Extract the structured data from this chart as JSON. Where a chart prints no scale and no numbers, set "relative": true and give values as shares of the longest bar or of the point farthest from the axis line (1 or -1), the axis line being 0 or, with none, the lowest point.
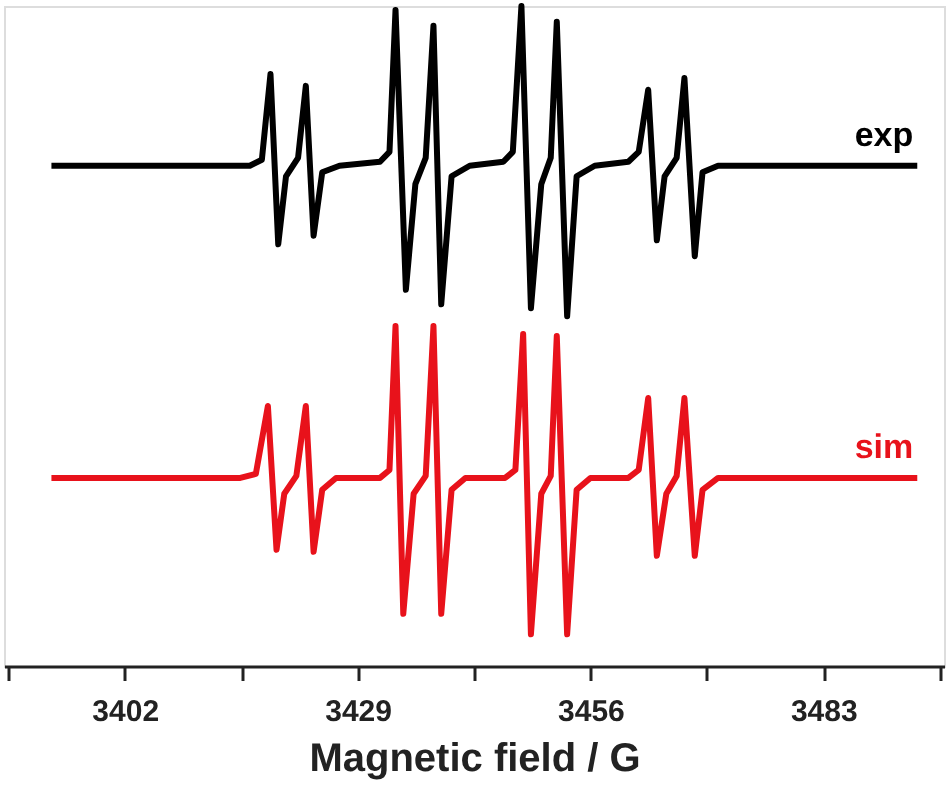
{
  "chart_data": {
    "type": "line",
    "relative": true,
    "xlabel": "Magnetic field / G",
    "xlim": [
      3388,
      3497
    ],
    "xticks": [
      {
        "value": 3388.5,
        "label": null
      },
      3402,
      {
        "value": 3415.5,
        "label": null
      },
      3429,
      {
        "value": 3442.5,
        "label": null
      },
      3456,
      {
        "value": 3469.5,
        "label": null
      },
      3483,
      {
        "value": 3496.5,
        "label": null
      }
    ],
    "grid": false,
    "line_style": "solid",
    "marker": "none",
    "series": [
      {
        "name": "exp",
        "color": "#000000",
        "x": [
          3393.5,
          3416.5,
          3417.9,
          3418.9,
          3419.8,
          3420.7,
          3422.1,
          3423.0,
          3423.9,
          3424.9,
          3426.9,
          3431.6,
          3432.7,
          3433.4,
          3434.6,
          3435.7,
          3436.9,
          3437.8,
          3438.7,
          3439.9,
          3442.0,
          3445.9,
          3447.0,
          3448.0,
          3449.1,
          3450.3,
          3451.4,
          3452.1,
          3453.3,
          3454.4,
          3456.5,
          3460.4,
          3461.6,
          3462.7,
          3463.7,
          3464.6,
          3466.0,
          3466.9,
          3468.1,
          3469.0,
          3470.8,
          3493.9
        ],
        "values": [
          0.758,
          0.758,
          0.767,
          0.897,
          0.639,
          0.742,
          0.77,
          0.879,
          0.652,
          0.748,
          0.758,
          0.764,
          0.779,
          0.994,
          0.57,
          0.73,
          0.77,
          0.97,
          0.548,
          0.742,
          0.758,
          0.764,
          0.779,
          1.0,
          0.542,
          0.73,
          0.77,
          0.976,
          0.53,
          0.742,
          0.758,
          0.764,
          0.779,
          0.873,
          0.645,
          0.742,
          0.77,
          0.891,
          0.621,
          0.748,
          0.758,
          0.758
        ]
      },
      {
        "name": "sim",
        "color": "#e8121b",
        "x": [
          3393.5,
          3415.4,
          3417.2,
          3418.6,
          3419.6,
          3420.5,
          3421.9,
          3423.0,
          3423.9,
          3424.9,
          3426.5,
          3431.6,
          3432.7,
          3433.4,
          3434.3,
          3435.5,
          3436.9,
          3437.8,
          3438.7,
          3439.9,
          3441.5,
          3446.1,
          3447.3,
          3448.2,
          3449.1,
          3450.3,
          3451.4,
          3452.1,
          3453.3,
          3454.4,
          3456.0,
          3460.4,
          3461.6,
          3462.7,
          3463.7,
          3464.8,
          3466.0,
          3466.9,
          3468.1,
          3469.0,
          3470.8,
          3493.9
        ],
        "values": [
          0.285,
          0.285,
          0.291,
          0.394,
          0.176,
          0.261,
          0.288,
          0.394,
          0.173,
          0.267,
          0.285,
          0.285,
          0.297,
          0.515,
          0.079,
          0.261,
          0.288,
          0.515,
          0.079,
          0.267,
          0.285,
          0.285,
          0.297,
          0.503,
          0.048,
          0.261,
          0.288,
          0.5,
          0.048,
          0.267,
          0.285,
          0.285,
          0.297,
          0.406,
          0.167,
          0.261,
          0.288,
          0.406,
          0.167,
          0.267,
          0.285,
          0.285
        ]
      }
    ]
  }
}
